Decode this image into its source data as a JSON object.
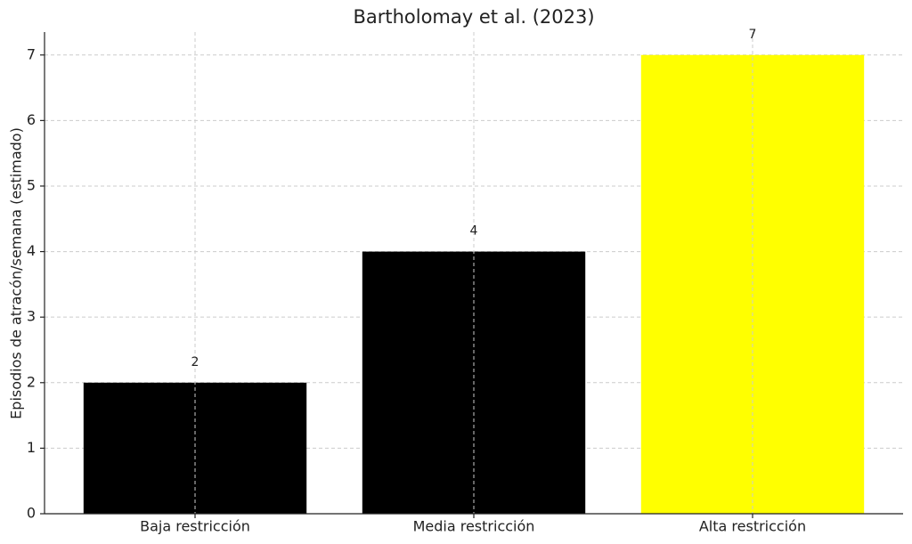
{
  "chart_data": {
    "type": "bar",
    "title": "Bartholomay et al. (2023)",
    "y_label": "Episodios de atracón/semana (estimado)",
    "categories": [
      "Baja restricción",
      "Media restricción",
      "Alta restricción"
    ],
    "values": [
      2,
      4,
      7
    ],
    "colors": [
      "#000000",
      "#000000",
      "#ffff00"
    ],
    "ylim": [
      0,
      7.35
    ],
    "yticks": [
      0,
      1,
      2,
      3,
      4,
      5,
      6,
      7
    ],
    "grid": true
  }
}
